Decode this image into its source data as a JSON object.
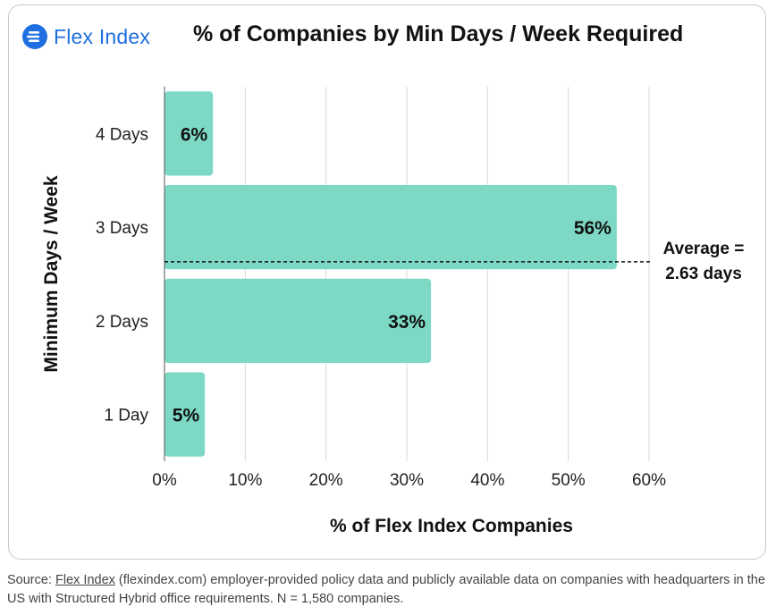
{
  "header": {
    "logo_text": "Flex Index",
    "title": "% of Companies by Min Days / Week Required"
  },
  "chart_data": {
    "type": "bar",
    "orientation": "horizontal",
    "categories": [
      "4 Days",
      "3 Days",
      "2 Days",
      "1 Day"
    ],
    "values": [
      6,
      56,
      33,
      5
    ],
    "value_labels": [
      "6%",
      "56%",
      "33%",
      "5%"
    ],
    "xlabel": "% of Flex Index Companies",
    "ylabel": "Minimum Days / Week",
    "xlim": [
      0,
      60
    ],
    "xticks": [
      0,
      10,
      20,
      30,
      40,
      50,
      60
    ],
    "xtick_labels": [
      "0%",
      "10%",
      "20%",
      "30%",
      "40%",
      "50%",
      "60%"
    ],
    "grid": "vertical",
    "bar_color": "#7dd9c6",
    "annotation": {
      "type": "horizontal-dashed-line",
      "position_days": 2.63,
      "label_line1": "Average =",
      "label_line2": "2.63 days"
    }
  },
  "footer": {
    "source_prefix": "Source: ",
    "source_link": "Flex Index",
    "source_rest": " (flexindex.com) employer-provided policy data and publicly available data on companies with headquarters in the US with Structured Hybrid office requirements. N = 1,580 companies."
  },
  "colors": {
    "accent": "#1f6fe0",
    "bar": "#7dd9c6",
    "grid": "#d9d9d9"
  }
}
